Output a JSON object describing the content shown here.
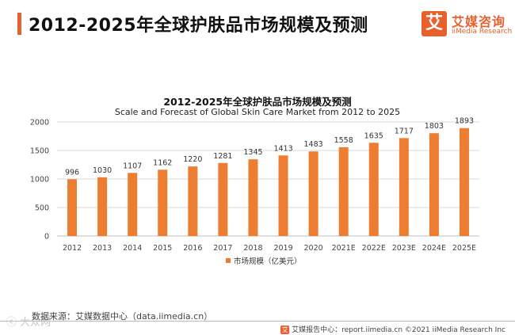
{
  "header": {
    "title": "2012-2025年全球护肤品市场规模及预测"
  },
  "logo": {
    "icon_char": "艾",
    "name_cn": "艾媒咨询",
    "name_en": "iiMedia Research"
  },
  "colors": {
    "accent": "#e8612c",
    "bar": "#ed7d31",
    "grid": "#d9d9d9"
  },
  "chart_data": {
    "type": "bar",
    "title": "2012-2025年全球护肤品市场规模及预测",
    "subtitle": "Scale and Forecast of Global Skin Care Market from 2012 to 2025",
    "categories": [
      "2012",
      "2013",
      "2014",
      "2015",
      "2016",
      "2017",
      "2018",
      "2019",
      "2020",
      "2021E",
      "2022E",
      "2023E",
      "2024E",
      "2025E"
    ],
    "series": [
      {
        "name": "市场规模（亿美元）",
        "values": [
          996,
          1030,
          1107,
          1162,
          1220,
          1281,
          1345,
          1413,
          1483,
          1558,
          1635,
          1717,
          1803,
          1893
        ]
      }
    ],
    "ylim": [
      0,
      2000
    ],
    "yticks": [
      0,
      500,
      1000,
      1500,
      2000
    ],
    "xlabel": "",
    "ylabel": "",
    "grid": true,
    "legend_position": "bottom"
  },
  "footer": {
    "source": "数据来源：艾媒数据中心（data.iimedia.cn）",
    "logo_char": "艾",
    "right_text": "艾媒报告中心：report.iimedia.cn  ©2021  iiMedia Research  Inc"
  },
  "watermark": {
    "text": "ⓒ 大众网"
  }
}
